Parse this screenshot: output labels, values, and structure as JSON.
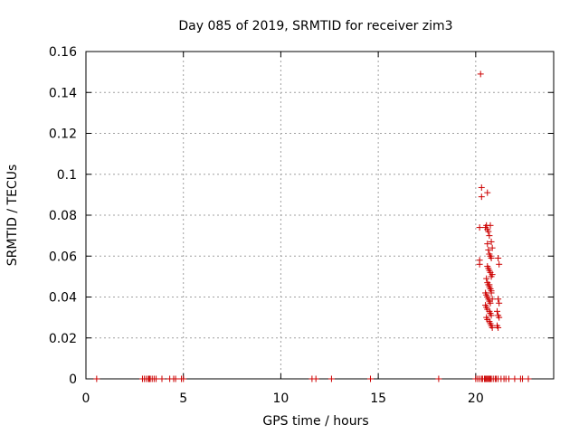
{
  "chart_data": {
    "type": "scatter",
    "title": "Day 085 of 2019, SRMTID for receiver zim3",
    "xlabel": "GPS time / hours",
    "ylabel": "SRMTID / TECUs",
    "xlim": [
      0,
      24
    ],
    "ylim": [
      0,
      0.16
    ],
    "xticks": [
      0,
      5,
      10,
      15,
      20
    ],
    "xtick_labels": [
      "0",
      "5",
      "10",
      "15",
      "20"
    ],
    "yticks": [
      0,
      0.02,
      0.04,
      0.06,
      0.08,
      0.1,
      0.12,
      0.14,
      0.16
    ],
    "ytick_labels": [
      "0",
      "0.02",
      "0.04",
      "0.06",
      "0.08",
      "0.1",
      "0.12",
      "0.14",
      "0.16"
    ],
    "grid": true,
    "marker": "+",
    "color": "#cc0000",
    "series": [
      {
        "name": "SRMTID",
        "x": [
          0.55,
          2.9,
          3.0,
          3.1,
          3.2,
          3.25,
          3.3,
          3.4,
          3.5,
          3.6,
          3.9,
          4.3,
          4.5,
          4.6,
          4.9,
          5.0,
          11.6,
          11.8,
          12.6,
          14.6,
          18.1,
          20.0,
          20.1,
          20.2,
          20.3,
          20.35,
          20.45,
          20.5,
          20.55,
          20.6,
          20.65,
          20.7,
          20.75,
          20.8,
          20.9,
          21.0,
          21.05,
          21.15,
          21.3,
          21.45,
          21.55,
          21.7,
          22.0,
          22.3,
          22.4,
          22.7,
          20.25,
          20.3,
          20.3,
          20.6,
          20.2,
          20.2,
          20.2,
          20.5,
          20.55,
          20.6,
          20.65,
          20.7,
          20.75,
          20.8,
          20.85,
          20.6,
          20.65,
          20.7,
          20.75,
          20.8,
          20.6,
          20.65,
          20.7,
          20.75,
          20.8,
          20.85,
          20.55,
          20.6,
          20.65,
          20.7,
          20.75,
          20.8,
          20.5,
          20.55,
          20.6,
          20.65,
          20.7,
          20.75,
          20.5,
          20.55,
          20.6,
          20.7,
          20.75,
          20.8,
          20.55,
          20.6,
          20.7,
          20.75,
          20.8,
          20.85,
          20.7,
          20.75,
          20.8,
          20.85,
          21.15,
          21.2,
          21.15,
          21.2,
          21.1,
          21.15,
          21.2,
          21.1,
          21.15
        ],
        "y": [
          0,
          0,
          0,
          0,
          0,
          0,
          0,
          0,
          0,
          0,
          0,
          0,
          0,
          0,
          0,
          0,
          0,
          0,
          0,
          0,
          0,
          0,
          0,
          0,
          0,
          0,
          0,
          0,
          0,
          0,
          0,
          0,
          0,
          0,
          0,
          0,
          0,
          0,
          0,
          0,
          0,
          0,
          0,
          0,
          0,
          0,
          0.149,
          0.0935,
          0.089,
          0.091,
          0.074,
          0.058,
          0.056,
          0.074,
          0.075,
          0.073,
          0.072,
          0.07,
          0.075,
          0.067,
          0.064,
          0.066,
          0.063,
          0.061,
          0.06,
          0.059,
          0.055,
          0.054,
          0.053,
          0.052,
          0.05,
          0.051,
          0.049,
          0.047,
          0.046,
          0.045,
          0.044,
          0.043,
          0.042,
          0.041,
          0.04,
          0.039,
          0.038,
          0.037,
          0.036,
          0.035,
          0.034,
          0.033,
          0.032,
          0.031,
          0.03,
          0.029,
          0.028,
          0.027,
          0.026,
          0.025,
          0.046,
          0.044,
          0.042,
          0.039,
          0.059,
          0.056,
          0.039,
          0.037,
          0.033,
          0.031,
          0.03,
          0.026,
          0.025
        ]
      }
    ]
  }
}
